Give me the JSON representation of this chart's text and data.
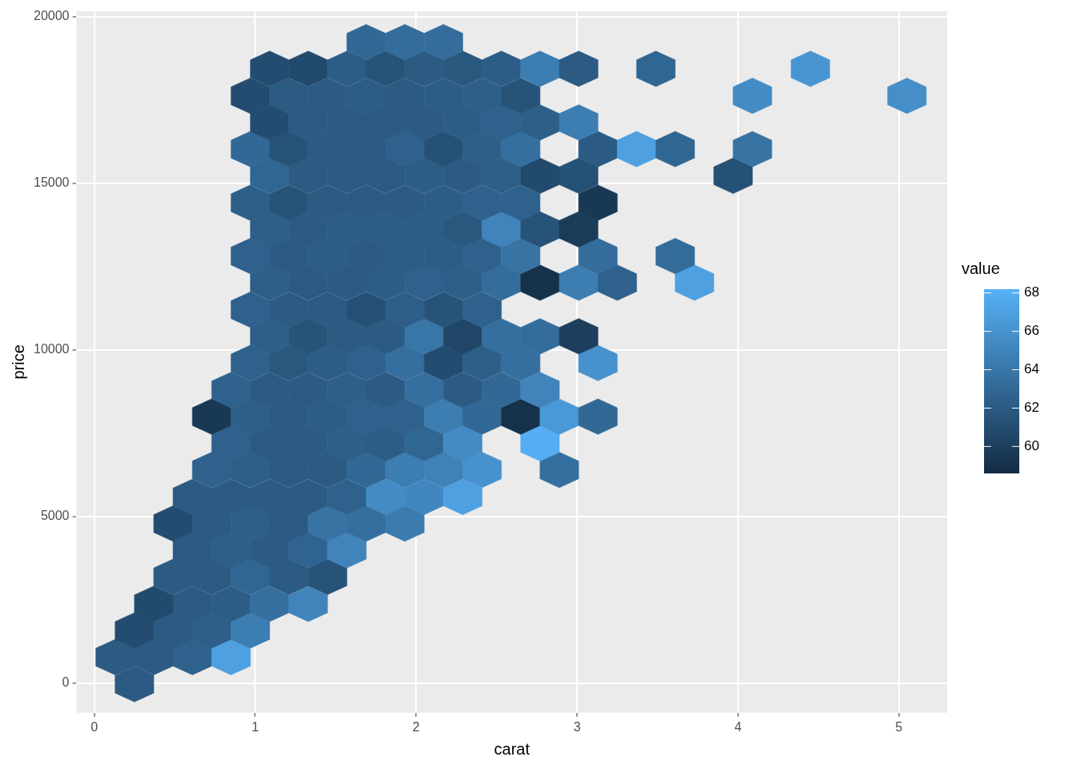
{
  "chart_data": {
    "type": "scatter",
    "xlabel": "carat",
    "ylabel": "price",
    "clabel": "value",
    "xlim": [
      -0.11,
      5.3
    ],
    "ylim": [
      -890,
      20170
    ],
    "xticks": [
      0,
      1,
      2,
      3,
      4,
      5
    ],
    "yticks": [
      0,
      5000,
      10000,
      15000,
      20000
    ],
    "clim": [
      58.6,
      68.2
    ],
    "cticks": [
      60,
      62,
      64,
      66,
      68
    ],
    "grid": true,
    "legend": false,
    "x": [
      0.25,
      0.13,
      0.37,
      0.61,
      0.85,
      0.25,
      0.49,
      0.73,
      0.97,
      0.37,
      0.61,
      0.85,
      1.09,
      1.33,
      0.49,
      0.73,
      0.97,
      1.21,
      1.45,
      0.61,
      0.85,
      1.09,
      1.33,
      1.57,
      0.49,
      0.73,
      0.97,
      1.21,
      1.45,
      1.69,
      1.93,
      0.61,
      0.85,
      1.09,
      1.33,
      1.57,
      1.81,
      2.05,
      2.29,
      0.73,
      0.97,
      1.21,
      1.45,
      1.69,
      1.93,
      2.17,
      2.41,
      2.89,
      0.85,
      1.09,
      1.33,
      1.57,
      1.81,
      2.05,
      2.29,
      2.77,
      0.73,
      0.97,
      1.21,
      1.45,
      1.69,
      1.93,
      2.17,
      2.41,
      2.65,
      2.89,
      3.13,
      0.85,
      1.09,
      1.33,
      1.57,
      1.81,
      2.05,
      2.29,
      2.53,
      2.77,
      0.97,
      1.21,
      1.45,
      1.69,
      1.93,
      2.17,
      2.41,
      2.65,
      3.13,
      1.09,
      1.33,
      1.57,
      1.81,
      2.05,
      2.29,
      2.53,
      2.77,
      3.01,
      0.97,
      1.21,
      1.45,
      1.69,
      1.93,
      2.17,
      2.41,
      1.09,
      1.33,
      1.57,
      1.81,
      2.05,
      2.29,
      2.53,
      2.77,
      3.01,
      3.25,
      3.73,
      0.97,
      1.21,
      1.45,
      1.69,
      1.93,
      2.17,
      2.41,
      2.65,
      3.13,
      3.61,
      1.09,
      1.33,
      1.57,
      1.81,
      2.05,
      2.29,
      2.53,
      2.77,
      3.01,
      0.97,
      1.21,
      1.45,
      1.69,
      1.93,
      2.17,
      2.41,
      2.65,
      3.13,
      1.09,
      1.33,
      1.57,
      1.81,
      2.05,
      2.29,
      2.53,
      2.77,
      3.01,
      3.97,
      0.97,
      1.21,
      1.45,
      1.69,
      1.93,
      2.17,
      2.41,
      2.65,
      3.13,
      3.37,
      3.61,
      4.09,
      1.09,
      1.33,
      1.57,
      1.81,
      2.05,
      2.29,
      2.53,
      2.77,
      3.01,
      0.97,
      1.21,
      1.45,
      1.69,
      1.93,
      2.17,
      2.41,
      2.65,
      4.09,
      5.05,
      1.09,
      1.33,
      1.57,
      1.81,
      2.05,
      2.29,
      2.53,
      2.77,
      3.01,
      3.49,
      4.45,
      1.69,
      1.93,
      2.17
    ],
    "values": [
      -30,
      780,
      780,
      780,
      780,
      1580,
      1580,
      1580,
      1580,
      2380,
      2380,
      2380,
      2380,
      2380,
      3190,
      3190,
      3190,
      3190,
      3190,
      3990,
      3990,
      3990,
      3990,
      3990,
      4790,
      4790,
      4790,
      4790,
      4790,
      4790,
      4790,
      5590,
      5590,
      5590,
      5590,
      5590,
      5590,
      5590,
      5590,
      6400,
      6400,
      6400,
      6400,
      6400,
      6400,
      6400,
      6400,
      6400,
      7200,
      7200,
      7200,
      7200,
      7200,
      7200,
      7200,
      7200,
      8000,
      8000,
      8000,
      8000,
      8000,
      8000,
      8000,
      8000,
      8000,
      8000,
      8000,
      8800,
      8800,
      8800,
      8800,
      8800,
      8800,
      8800,
      8800,
      8800,
      9610,
      9610,
      9610,
      9610,
      9610,
      9610,
      9610,
      9610,
      9610,
      10410,
      10410,
      10410,
      10410,
      10410,
      10410,
      10410,
      10410,
      10410,
      11210,
      11210,
      11210,
      11210,
      11210,
      11210,
      11210,
      12020,
      12020,
      12020,
      12020,
      12020,
      12020,
      12020,
      12020,
      12020,
      12020,
      12020,
      12820,
      12820,
      12820,
      12820,
      12820,
      12820,
      12820,
      12820,
      12820,
      12820,
      13620,
      13620,
      13620,
      13620,
      13620,
      13620,
      13620,
      13620,
      13620,
      14420,
      14420,
      14420,
      14420,
      14420,
      14420,
      14420,
      14420,
      14420,
      15230,
      15230,
      15230,
      15230,
      15230,
      15230,
      15230,
      15230,
      15230,
      15230,
      16030,
      16030,
      16030,
      16030,
      16030,
      16030,
      16030,
      16030,
      16030,
      16030,
      16030,
      16030,
      16830,
      16830,
      16830,
      16830,
      16830,
      16830,
      16830,
      16830,
      16830,
      17630,
      17630,
      17630,
      17630,
      17630,
      17630,
      17630,
      17630,
      17630,
      17630,
      18440,
      18440,
      18440,
      18440,
      18440,
      18440,
      18440,
      18440,
      18440,
      18440,
      18440,
      19240,
      19240,
      19240
    ],
    "cvalues": [
      62,
      62,
      62,
      62.5,
      67,
      61,
      62,
      62.3,
      64.5,
      60.8,
      62,
      62.2,
      63.5,
      65,
      62,
      62,
      62.8,
      62,
      61.5,
      62,
      62.3,
      62,
      62.7,
      65,
      61,
      62,
      62.3,
      62,
      63.8,
      63.5,
      64.3,
      62,
      62,
      62,
      62,
      62.5,
      65.5,
      65.2,
      67,
      62.5,
      62.3,
      62,
      62,
      63,
      64.5,
      64.8,
      66,
      63.5,
      62.5,
      62,
      62,
      62.3,
      62.2,
      62.8,
      65.5,
      68,
      59.5,
      62.3,
      62,
      62.2,
      62.5,
      62.5,
      64.5,
      63,
      59,
      66.5,
      63,
      62.5,
      62,
      62,
      62.3,
      62,
      63.5,
      62,
      63,
      65,
      62.5,
      61.8,
      62.2,
      62.5,
      63.5,
      61,
      62.3,
      63.5,
      66,
      62.3,
      61.5,
      62,
      62,
      64,
      60.5,
      63.5,
      63.3,
      60,
      62.5,
      62,
      62,
      61.2,
      62.3,
      61.5,
      62.5,
      62.3,
      62,
      62,
      62.2,
      62.5,
      62.3,
      63.3,
      59,
      64.5,
      62.5,
      67,
      62.5,
      62,
      62.2,
      62,
      62.2,
      62.2,
      62.5,
      63.8,
      63.3,
      63.2,
      62.3,
      62,
      62.2,
      62.2,
      62.2,
      61.8,
      65,
      61.5,
      59.8,
      62.3,
      61.5,
      62,
      62,
      62,
      62.2,
      62.5,
      62.5,
      59.5,
      62.8,
      62,
      62,
      62,
      62.2,
      62,
      62.3,
      60.8,
      61.3,
      61.3,
      63,
      61.5,
      62,
      62,
      62.5,
      61.3,
      62.3,
      63.5,
      62,
      67,
      62.8,
      63.8,
      61,
      62,
      62,
      62,
      62,
      62.2,
      62.5,
      62.3,
      64.5,
      61,
      62,
      62,
      62.2,
      62,
      62.2,
      62.3,
      61.5,
      65.5,
      65.7,
      61,
      60.8,
      62.2,
      61.5,
      62,
      61.8,
      62.2,
      64.5,
      62,
      62.8,
      66.2,
      63,
      63.3,
      63.3
    ]
  }
}
